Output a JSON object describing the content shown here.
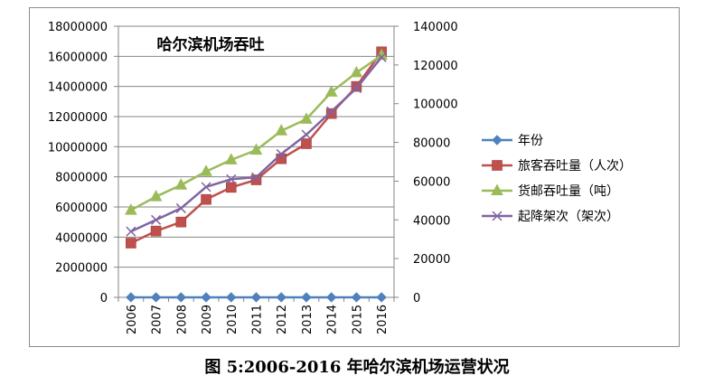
{
  "caption": "图 5:2006-2016 年哈尔滨机场运营状况",
  "chart_data": {
    "type": "line",
    "title": "哈尔滨机场吞吐",
    "categories": [
      "2006",
      "2007",
      "2008",
      "2009",
      "2010",
      "2011",
      "2012",
      "2013",
      "2014",
      "2015",
      "2016"
    ],
    "y_left": {
      "ylim": [
        0,
        18000000
      ],
      "ticks": [
        0,
        2000000,
        4000000,
        6000000,
        8000000,
        10000000,
        12000000,
        14000000,
        16000000,
        18000000
      ]
    },
    "y_right": {
      "ylim": [
        0,
        140000
      ],
      "ticks": [
        0,
        20000,
        40000,
        60000,
        80000,
        100000,
        120000,
        140000
      ]
    },
    "grid": true,
    "legend_position": "right",
    "series": [
      {
        "name": "年份",
        "axis": "left",
        "color": "#4f81bd",
        "marker": "diamond",
        "values": [
          2006,
          2007,
          2008,
          2009,
          2010,
          2011,
          2012,
          2013,
          2014,
          2015,
          2016
        ]
      },
      {
        "name": "旅客吞吐量（人次）",
        "axis": "left",
        "color": "#c0504d",
        "marker": "square",
        "values": [
          3600000,
          4400000,
          5000000,
          6500000,
          7300000,
          7800000,
          9200000,
          10200000,
          12200000,
          14000000,
          16300000
        ]
      },
      {
        "name": "货邮吞吐量（吨）",
        "axis": "right",
        "color": "#9bbb59",
        "marker": "triangle",
        "values": [
          45000,
          52000,
          58000,
          65000,
          71000,
          76000,
          86000,
          92000,
          106000,
          116000,
          125000
        ]
      },
      {
        "name": "起降架次（架次）",
        "axis": "right",
        "color": "#8064a2",
        "marker": "x",
        "values": [
          34000,
          40000,
          46000,
          57000,
          61000,
          62000,
          74000,
          84000,
          96000,
          108000,
          124000
        ]
      }
    ]
  }
}
